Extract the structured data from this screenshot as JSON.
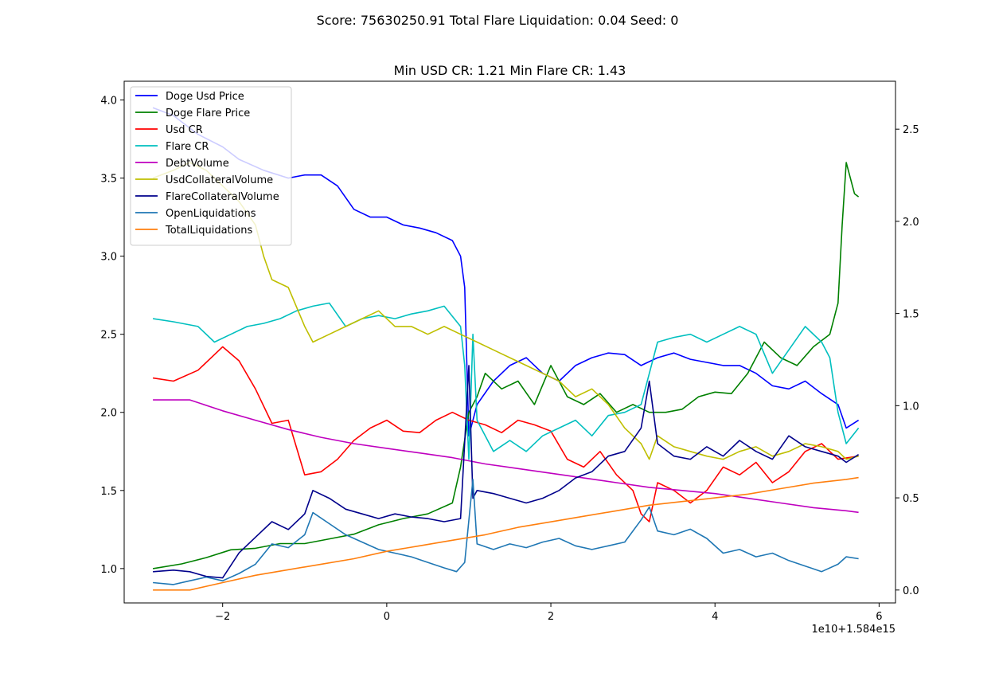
{
  "figure": {
    "suptitle": "Score: 75630250.91 Total Flare Liquidation: 0.04 Seed: 0",
    "title": "Min USD CR: 1.21 Min Flare CR: 1.43",
    "x_offset_label": "1e10+1.584e15"
  },
  "chart_data": {
    "type": "line",
    "title": "Min USD CR: 1.21 Min Flare CR: 1.43",
    "xlabel": "",
    "ylabel": "",
    "grid": false,
    "legend_position": "top-left",
    "x_range": [
      -3.2,
      6.2
    ],
    "y_left_range": [
      0.78,
      4.12
    ],
    "y_right_range": [
      -0.07,
      2.76
    ],
    "x_ticks": [
      -2,
      0,
      2,
      4,
      6
    ],
    "x_tick_labels": [
      "−2",
      "0",
      "2",
      "4",
      "6"
    ],
    "y_left_ticks": [
      1.0,
      1.5,
      2.0,
      2.5,
      3.0,
      3.5,
      4.0
    ],
    "y_left_tick_labels": [
      "1.0",
      "1.5",
      "2.0",
      "2.5",
      "3.0",
      "3.5",
      "4.0"
    ],
    "y_right_ticks": [
      0.0,
      0.5,
      1.0,
      1.5,
      2.0,
      2.5
    ],
    "y_right_tick_labels": [
      "0.0",
      "0.5",
      "1.0",
      "1.5",
      "2.0",
      "2.5"
    ],
    "series": [
      {
        "name": "Doge Usd Price",
        "color": "#0000ff",
        "axis": "left",
        "x": [
          -2.85,
          -2.6,
          -2.3,
          -2.0,
          -1.8,
          -1.5,
          -1.2,
          -1.0,
          -0.8,
          -0.6,
          -0.4,
          -0.2,
          0.0,
          0.2,
          0.4,
          0.6,
          0.8,
          0.9,
          0.95,
          1.0,
          1.1,
          1.3,
          1.5,
          1.7,
          1.9,
          2.1,
          2.3,
          2.5,
          2.7,
          2.9,
          3.1,
          3.3,
          3.5,
          3.7,
          3.9,
          4.1,
          4.3,
          4.5,
          4.7,
          4.9,
          5.1,
          5.3,
          5.5,
          5.6,
          5.75
        ],
        "y": [
          3.95,
          3.9,
          3.78,
          3.7,
          3.62,
          3.55,
          3.5,
          3.52,
          3.52,
          3.45,
          3.3,
          3.25,
          3.25,
          3.2,
          3.18,
          3.15,
          3.1,
          3.0,
          2.8,
          1.85,
          2.05,
          2.2,
          2.3,
          2.35,
          2.25,
          2.2,
          2.3,
          2.35,
          2.38,
          2.37,
          2.3,
          2.35,
          2.38,
          2.34,
          2.32,
          2.3,
          2.3,
          2.25,
          2.17,
          2.15,
          2.2,
          2.12,
          2.05,
          1.9,
          1.95
        ]
      },
      {
        "name": "Doge Flare Price",
        "color": "#008000",
        "axis": "left",
        "x": [
          -2.85,
          -2.5,
          -2.2,
          -1.9,
          -1.6,
          -1.3,
          -1.0,
          -0.7,
          -0.4,
          -0.1,
          0.2,
          0.5,
          0.8,
          0.9,
          1.0,
          1.1,
          1.2,
          1.4,
          1.6,
          1.8,
          2.0,
          2.2,
          2.4,
          2.6,
          2.8,
          3.0,
          3.2,
          3.4,
          3.6,
          3.8,
          4.0,
          4.2,
          4.4,
          4.6,
          4.8,
          5.0,
          5.2,
          5.4,
          5.5,
          5.55,
          5.6,
          5.7,
          5.75
        ],
        "y": [
          1.0,
          1.03,
          1.07,
          1.12,
          1.13,
          1.16,
          1.16,
          1.19,
          1.22,
          1.28,
          1.32,
          1.35,
          1.42,
          1.65,
          2.0,
          2.1,
          2.25,
          2.15,
          2.2,
          2.05,
          2.3,
          2.1,
          2.05,
          2.12,
          2.0,
          2.05,
          2.0,
          2.0,
          2.02,
          2.1,
          2.13,
          2.12,
          2.25,
          2.45,
          2.35,
          2.3,
          2.42,
          2.5,
          2.7,
          3.2,
          3.6,
          3.4,
          3.38
        ]
      },
      {
        "name": "Usd CR",
        "color": "#ff0000",
        "axis": "left",
        "x": [
          -2.85,
          -2.6,
          -2.3,
          -2.0,
          -1.8,
          -1.6,
          -1.4,
          -1.2,
          -1.0,
          -0.8,
          -0.6,
          -0.4,
          -0.2,
          0.0,
          0.2,
          0.4,
          0.6,
          0.8,
          1.0,
          1.2,
          1.4,
          1.6,
          1.8,
          2.0,
          2.2,
          2.4,
          2.6,
          2.8,
          3.0,
          3.1,
          3.2,
          3.3,
          3.5,
          3.7,
          3.9,
          4.1,
          4.3,
          4.5,
          4.7,
          4.9,
          5.1,
          5.3,
          5.5,
          5.75
        ],
        "y": [
          2.22,
          2.2,
          2.27,
          2.42,
          2.33,
          2.15,
          1.93,
          1.95,
          1.6,
          1.62,
          1.7,
          1.82,
          1.9,
          1.95,
          1.88,
          1.87,
          1.95,
          2.0,
          1.95,
          1.92,
          1.87,
          1.95,
          1.92,
          1.88,
          1.7,
          1.65,
          1.75,
          1.6,
          1.5,
          1.35,
          1.3,
          1.55,
          1.5,
          1.42,
          1.5,
          1.65,
          1.6,
          1.68,
          1.55,
          1.62,
          1.75,
          1.8,
          1.7,
          1.72
        ]
      },
      {
        "name": "Flare CR",
        "color": "#00bfbf",
        "axis": "left",
        "x": [
          -2.85,
          -2.6,
          -2.3,
          -2.1,
          -1.9,
          -1.7,
          -1.5,
          -1.3,
          -1.1,
          -0.9,
          -0.7,
          -0.5,
          -0.3,
          -0.1,
          0.1,
          0.3,
          0.5,
          0.7,
          0.9,
          0.95,
          1.0,
          1.05,
          1.1,
          1.3,
          1.5,
          1.7,
          1.9,
          2.1,
          2.3,
          2.5,
          2.7,
          2.9,
          3.1,
          3.3,
          3.5,
          3.7,
          3.9,
          4.1,
          4.3,
          4.5,
          4.7,
          4.9,
          5.1,
          5.3,
          5.4,
          5.5,
          5.6,
          5.75
        ],
        "y": [
          2.6,
          2.58,
          2.55,
          2.45,
          2.5,
          2.55,
          2.57,
          2.6,
          2.65,
          2.68,
          2.7,
          2.55,
          2.6,
          2.62,
          2.6,
          2.63,
          2.65,
          2.68,
          2.55,
          2.3,
          1.7,
          2.5,
          1.95,
          1.75,
          1.82,
          1.75,
          1.85,
          1.9,
          1.95,
          1.85,
          1.98,
          2.0,
          2.05,
          2.45,
          2.48,
          2.5,
          2.45,
          2.5,
          2.55,
          2.5,
          2.25,
          2.4,
          2.55,
          2.45,
          2.35,
          2.0,
          1.8,
          1.9
        ]
      },
      {
        "name": "DebtVolume",
        "color": "#bf00bf",
        "axis": "left",
        "x": [
          -2.85,
          -2.4,
          -2.0,
          -1.6,
          -1.2,
          -0.8,
          -0.4,
          0.0,
          0.4,
          0.8,
          1.2,
          1.6,
          2.0,
          2.4,
          2.8,
          3.2,
          3.6,
          4.0,
          4.4,
          4.8,
          5.2,
          5.6,
          5.75
        ],
        "y": [
          2.08,
          2.08,
          2.01,
          1.95,
          1.89,
          1.84,
          1.8,
          1.77,
          1.74,
          1.71,
          1.67,
          1.64,
          1.61,
          1.58,
          1.55,
          1.52,
          1.5,
          1.48,
          1.45,
          1.42,
          1.39,
          1.37,
          1.36
        ]
      },
      {
        "name": "UsdCollateralVolume",
        "color": "#bfbf00",
        "axis": "left",
        "x": [
          -2.85,
          -2.6,
          -2.4,
          -2.2,
          -2.0,
          -1.8,
          -1.6,
          -1.5,
          -1.4,
          -1.2,
          -1.0,
          -0.9,
          -0.7,
          -0.5,
          -0.3,
          -0.1,
          0.1,
          0.3,
          0.5,
          0.7,
          0.9,
          1.1,
          1.3,
          1.5,
          1.7,
          1.9,
          2.1,
          2.3,
          2.5,
          2.7,
          2.9,
          3.1,
          3.2,
          3.3,
          3.5,
          3.7,
          3.9,
          4.1,
          4.3,
          4.5,
          4.7,
          4.9,
          5.1,
          5.3,
          5.5,
          5.6,
          5.75
        ],
        "y": [
          3.5,
          3.55,
          3.6,
          3.55,
          3.45,
          3.35,
          3.2,
          3.0,
          2.85,
          2.8,
          2.55,
          2.45,
          2.5,
          2.55,
          2.6,
          2.65,
          2.55,
          2.55,
          2.5,
          2.55,
          2.5,
          2.45,
          2.4,
          2.35,
          2.3,
          2.25,
          2.2,
          2.1,
          2.15,
          2.05,
          1.9,
          1.8,
          1.7,
          1.85,
          1.78,
          1.75,
          1.72,
          1.7,
          1.75,
          1.78,
          1.72,
          1.75,
          1.8,
          1.78,
          1.75,
          1.7,
          1.72
        ]
      },
      {
        "name": "FlareCollateralVolume",
        "color": "#00008b",
        "axis": "left",
        "x": [
          -2.85,
          -2.6,
          -2.4,
          -2.2,
          -2.0,
          -1.8,
          -1.6,
          -1.4,
          -1.2,
          -1.0,
          -0.9,
          -0.7,
          -0.5,
          -0.3,
          -0.1,
          0.1,
          0.3,
          0.5,
          0.7,
          0.9,
          1.0,
          1.05,
          1.1,
          1.3,
          1.5,
          1.7,
          1.9,
          2.1,
          2.3,
          2.5,
          2.7,
          2.9,
          3.1,
          3.2,
          3.3,
          3.5,
          3.7,
          3.9,
          4.1,
          4.3,
          4.5,
          4.7,
          4.9,
          5.1,
          5.3,
          5.5,
          5.6,
          5.75
        ],
        "y": [
          0.98,
          0.99,
          0.98,
          0.95,
          0.94,
          1.1,
          1.2,
          1.3,
          1.25,
          1.35,
          1.5,
          1.45,
          1.38,
          1.35,
          1.32,
          1.35,
          1.33,
          1.32,
          1.3,
          1.32,
          2.3,
          1.45,
          1.5,
          1.48,
          1.45,
          1.42,
          1.45,
          1.5,
          1.58,
          1.62,
          1.72,
          1.75,
          1.9,
          2.2,
          1.8,
          1.72,
          1.7,
          1.78,
          1.72,
          1.82,
          1.75,
          1.7,
          1.85,
          1.78,
          1.75,
          1.72,
          1.68,
          1.73
        ]
      },
      {
        "name": "OpenLiquidations",
        "color": "#1f77b4",
        "axis": "right",
        "x": [
          -2.85,
          -2.6,
          -2.4,
          -2.2,
          -2.0,
          -1.8,
          -1.6,
          -1.4,
          -1.2,
          -1.0,
          -0.9,
          -0.7,
          -0.5,
          -0.3,
          -0.1,
          0.1,
          0.3,
          0.5,
          0.7,
          0.85,
          0.95,
          1.05,
          1.1,
          1.3,
          1.5,
          1.7,
          1.9,
          2.1,
          2.3,
          2.5,
          2.7,
          2.9,
          3.1,
          3.2,
          3.3,
          3.5,
          3.7,
          3.9,
          4.1,
          4.3,
          4.5,
          4.7,
          4.9,
          5.1,
          5.3,
          5.5,
          5.6,
          5.75
        ],
        "y": [
          0.04,
          0.03,
          0.05,
          0.07,
          0.05,
          0.09,
          0.14,
          0.25,
          0.23,
          0.3,
          0.42,
          0.36,
          0.3,
          0.26,
          0.22,
          0.2,
          0.18,
          0.15,
          0.12,
          0.1,
          0.15,
          0.6,
          0.25,
          0.22,
          0.25,
          0.23,
          0.26,
          0.28,
          0.24,
          0.22,
          0.24,
          0.26,
          0.38,
          0.45,
          0.32,
          0.3,
          0.33,
          0.28,
          0.2,
          0.22,
          0.18,
          0.2,
          0.16,
          0.13,
          0.1,
          0.14,
          0.18,
          0.17
        ]
      },
      {
        "name": "TotalLiquidations",
        "color": "#ff7f0e",
        "axis": "right",
        "x": [
          -2.85,
          -2.4,
          -2.0,
          -1.6,
          -1.2,
          -0.8,
          -0.4,
          0.0,
          0.4,
          0.8,
          1.2,
          1.6,
          2.0,
          2.4,
          2.8,
          3.2,
          3.6,
          4.0,
          4.4,
          4.8,
          5.2,
          5.6,
          5.75
        ],
        "y": [
          0.0,
          0.0,
          0.04,
          0.08,
          0.11,
          0.14,
          0.17,
          0.21,
          0.24,
          0.27,
          0.3,
          0.34,
          0.37,
          0.4,
          0.43,
          0.46,
          0.48,
          0.5,
          0.52,
          0.55,
          0.58,
          0.6,
          0.61
        ]
      }
    ]
  }
}
